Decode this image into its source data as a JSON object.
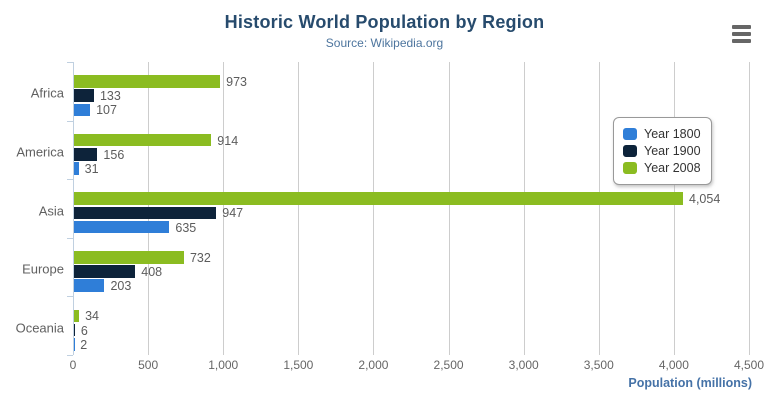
{
  "chart_data": {
    "type": "bar",
    "orientation": "horizontal",
    "title": "Historic World Population by Region",
    "subtitle": "Source: Wikipedia.org",
    "categories": [
      "Africa",
      "America",
      "Asia",
      "Europe",
      "Oceania"
    ],
    "series": [
      {
        "name": "Year 1800",
        "color": "#2f7ed8",
        "values": [
          107,
          31,
          635,
          203,
          2
        ]
      },
      {
        "name": "Year 1900",
        "color": "#0d233a",
        "values": [
          133,
          156,
          947,
          408,
          6
        ]
      },
      {
        "name": "Year 2008",
        "color": "#8bbc21",
        "values": [
          973,
          914,
          4054,
          732,
          34
        ]
      }
    ],
    "bar_order_top_to_bottom": [
      "Year 2008",
      "Year 1900",
      "Year 1800"
    ],
    "data_labels_shown": true,
    "data_label_values": {
      "Africa": [
        "973",
        "133",
        "107"
      ],
      "America": [
        "914",
        "156",
        "31"
      ],
      "Asia": [
        "4,054",
        "947",
        "635"
      ],
      "Europe": [
        "732",
        "408",
        "203"
      ],
      "Oceania": [
        "34",
        "6",
        "2"
      ]
    },
    "xlabel": "Population (millions)",
    "xlim": [
      0,
      4500
    ],
    "tick_interval": 500,
    "x_tick_labels": [
      "0",
      "500",
      "1,000",
      "1,500",
      "2,000",
      "2,500",
      "3,000",
      "3,500",
      "4,000",
      "4,500"
    ],
    "grid": true,
    "legend_position": "middle-right",
    "legend_items": [
      "Year 1800",
      "Year 1900",
      "Year 2008"
    ]
  },
  "icons": {
    "menu": "hamburger-icon"
  },
  "colors": {
    "title": "#274b6d",
    "subtitle": "#4d759e",
    "axis_labels": "#666666",
    "category_labels": "#606060",
    "data_labels": "#5c5c5c",
    "gridline": "#cdcdcd",
    "axis_line": "#c0d0e0",
    "axis_title": "#4572a7",
    "legend_border": "#999999",
    "legend_text": "#333333",
    "menu_icon": "#666666",
    "background": "#ffffff"
  }
}
